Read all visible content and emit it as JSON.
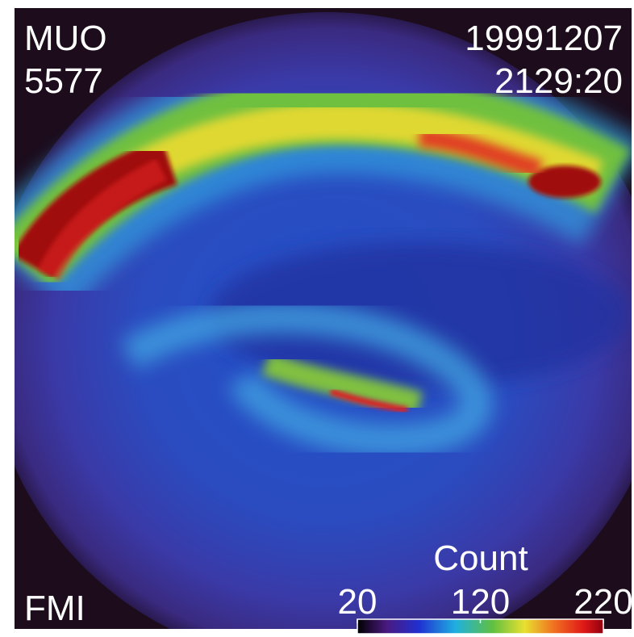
{
  "image": {
    "station": "MUO",
    "wavelength": "5577",
    "date": "19991207",
    "time": "2129:20",
    "source": "FMI"
  },
  "colorbar": {
    "label": "Count",
    "range": [
      20,
      220
    ],
    "ticks": [
      20,
      120,
      220
    ]
  }
}
